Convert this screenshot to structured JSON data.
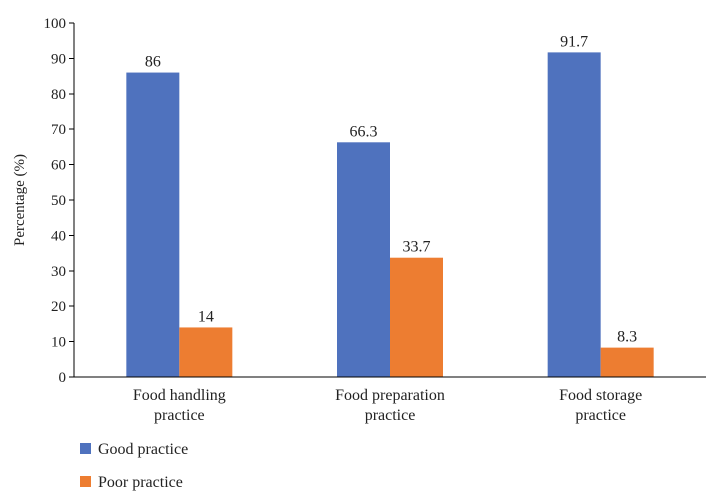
{
  "chart_data": {
    "type": "bar",
    "categories": [
      [
        "Food handling",
        "practice"
      ],
      [
        "Food preparation",
        "practice"
      ],
      [
        "Food storage",
        "practice"
      ]
    ],
    "series": [
      {
        "name": "Good practice",
        "values": [
          86,
          66.3,
          91.7
        ],
        "color": "#4f72be"
      },
      {
        "name": "Poor practice",
        "values": [
          14,
          33.7,
          8.3
        ],
        "color": "#ed7d31"
      }
    ],
    "data_labels": [
      [
        "86",
        "66.3",
        "91.7"
      ],
      [
        "14",
        "33.7",
        "8.3"
      ]
    ],
    "ylabel": "Percentage (%)",
    "ylim": [
      0,
      100
    ],
    "yticks": [
      "0",
      "10",
      "20",
      "30",
      "40",
      "50",
      "60",
      "70",
      "80",
      "90",
      "100"
    ],
    "grid": false,
    "legend": "bottom-left"
  }
}
